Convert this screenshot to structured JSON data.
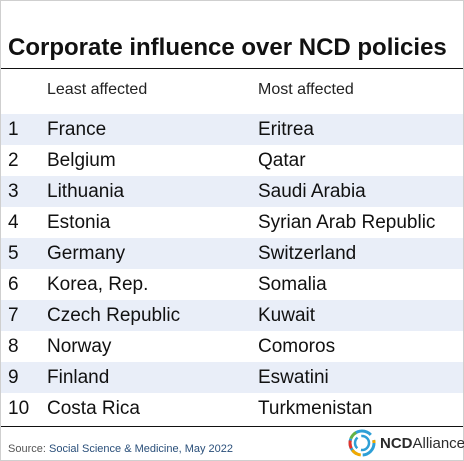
{
  "title": "Corporate influence over NCD policies",
  "headers": {
    "rank": "",
    "least": "Least affected",
    "most": "Most affected"
  },
  "rows": [
    {
      "rank": "1",
      "least": "France",
      "most": "Eritrea"
    },
    {
      "rank": "2",
      "least": "Belgium",
      "most": "Qatar"
    },
    {
      "rank": "3",
      "least": "Lithuania",
      "most": "Saudi Arabia"
    },
    {
      "rank": "4",
      "least": "Estonia",
      "most": "Syrian Arab Republic"
    },
    {
      "rank": "5",
      "least": "Germany",
      "most": "Switzerland"
    },
    {
      "rank": "6",
      "least": "Korea, Rep.",
      "most": "Somalia"
    },
    {
      "rank": "7",
      "least": "Czech Republic",
      "most": "Kuwait"
    },
    {
      "rank": "8",
      "least": "Norway",
      "most": "Comoros"
    },
    {
      "rank": "9",
      "least": "Finland",
      "most": "Eswatini"
    },
    {
      "rank": "10",
      "least": "Costa Rica",
      "most": "Turkmenistan"
    }
  ],
  "source": {
    "label": "Source:",
    "text": "Social Science & Medicine, May 2022"
  },
  "logo": {
    "bold": "NCD",
    "rest": "Alliance",
    "icon": "ncd-alliance-logo-mark"
  },
  "colors": {
    "row_alt": "#e9eef8",
    "source_text": "#2a4f7a",
    "rule": "#111111"
  }
}
